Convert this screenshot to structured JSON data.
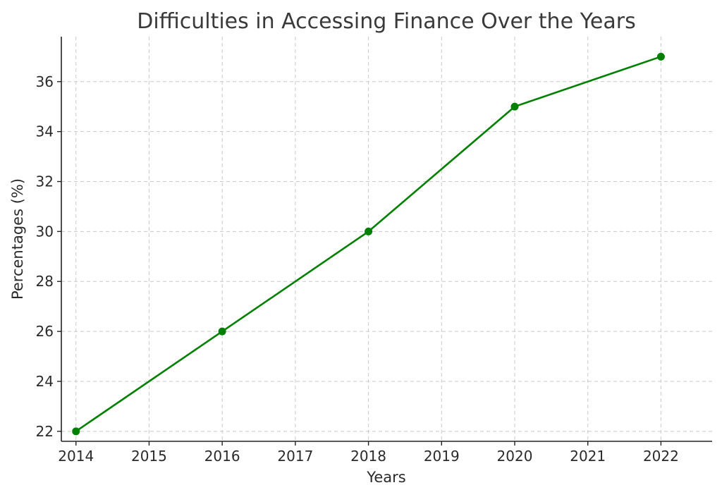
{
  "chart_data": {
    "type": "line",
    "title": "Difficulties in Accessing Finance Over the Years",
    "xlabel": "Years",
    "ylabel": "Percentages (%)",
    "x": [
      2014,
      2016,
      2018,
      2020,
      2022
    ],
    "values": [
      22,
      26,
      30,
      35,
      37
    ],
    "x_ticks": [
      "2014",
      "2015",
      "2016",
      "2017",
      "2018",
      "2019",
      "2020",
      "2021",
      "2022"
    ],
    "y_ticks": [
      "22",
      "24",
      "26",
      "28",
      "30",
      "32",
      "34",
      "36"
    ],
    "xlim": [
      2013.8,
      2022.7
    ],
    "ylim": [
      21.6,
      37.8
    ],
    "grid": true,
    "marker": "circle",
    "line_color": "#008000"
  }
}
